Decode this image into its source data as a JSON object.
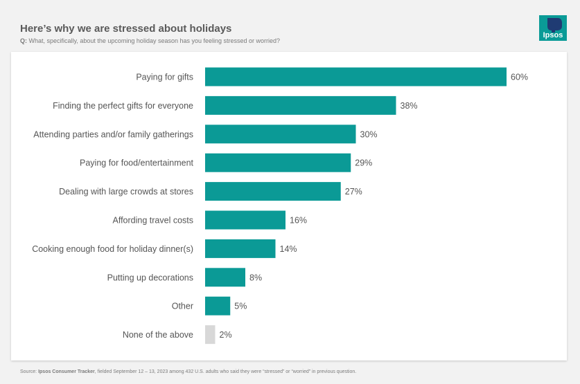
{
  "header": {
    "title": "Here’s why we are stressed about holidays",
    "question_prefix": "Q:",
    "question_text": "What, specifically, about the upcoming holiday season has you feeling stressed or worried?"
  },
  "logo": {
    "text": "Ipsos"
  },
  "chart_data": {
    "type": "bar",
    "orientation": "horizontal",
    "categories": [
      "Paying for gifts",
      "Finding the perfect gifts for everyone",
      "Attending parties and/or family gatherings",
      "Paying for food/entertainment",
      "Dealing with large crowds at stores",
      "Affording travel costs",
      "Cooking enough food for holiday dinner(s)",
      "Putting up decorations",
      "Other",
      "None of the above"
    ],
    "values": [
      60,
      38,
      30,
      29,
      27,
      16,
      14,
      8,
      5,
      2
    ],
    "value_labels": [
      "60%",
      "38%",
      "30%",
      "29%",
      "27%",
      "16%",
      "14%",
      "8%",
      "5%",
      "2%"
    ],
    "xlim": [
      0,
      60
    ],
    "grid": false,
    "legend": "none"
  },
  "colors": {
    "bar": "#0b9a96",
    "bar_muted": "#d8d8d8",
    "logo_bg": "#0a9b97",
    "logo_shape": "#1f3b73"
  },
  "footer": {
    "source_prefix": "Source:",
    "source_name": "Ipsos Consumer Tracker",
    "source_rest": ", fielded September 12 – 13, 2023 among 432 U.S. adults who said they were “stressed” or “worried” in previous question."
  }
}
